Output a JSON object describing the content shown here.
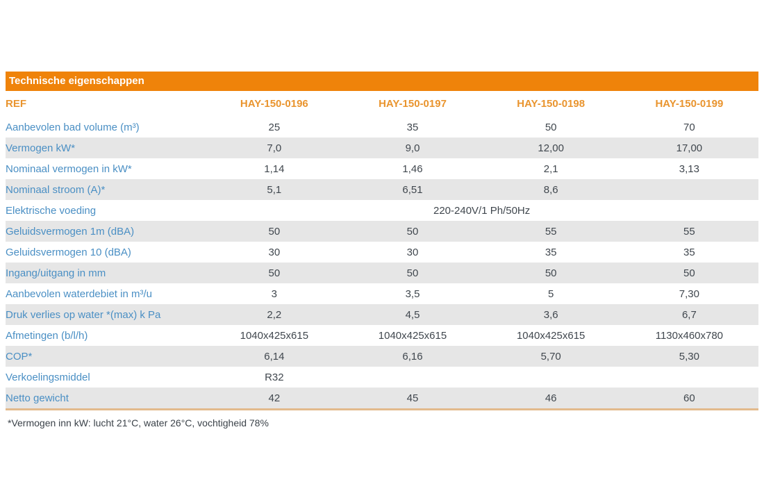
{
  "table": {
    "title": "Technische eigenschappen",
    "ref_label": "REF",
    "columns": [
      "HAY-150-0196",
      "HAY-150-0197",
      "HAY-150-0198",
      "HAY-150-0199"
    ],
    "rows": [
      {
        "label": "Aanbevolen bad volume (m³)",
        "values": [
          "25",
          "35",
          "50",
          "70"
        ]
      },
      {
        "label": "Vermogen kW*",
        "values": [
          "7,0",
          "9,0",
          "12,00",
          "17,00"
        ]
      },
      {
        "label": "Nominaal vermogen in kW*",
        "values": [
          "1,14",
          "1,46",
          "2,1",
          "3,13"
        ]
      },
      {
        "label": "Nominaal stroom (A)*",
        "values": [
          "5,1",
          "6,51",
          "8,6",
          ""
        ]
      },
      {
        "label": "Elektrische voeding",
        "span_value": "220-240V/1 Ph/50Hz"
      },
      {
        "label": "Geluidsvermogen 1m (dBA)",
        "values": [
          "50",
          "50",
          "55",
          "55"
        ]
      },
      {
        "label": "Geluidsvermogen 10 (dBA)",
        "values": [
          "30",
          "30",
          "35",
          "35"
        ]
      },
      {
        "label": "Ingang/uitgang in mm",
        "values": [
          "50",
          "50",
          "50",
          "50"
        ]
      },
      {
        "label": "Aanbevolen waterdebiet in m³/u",
        "values": [
          "3",
          "3,5",
          "5",
          "7,30"
        ]
      },
      {
        "label": "Druk verlies op water *(max) k Pa",
        "values": [
          "2,2",
          "4,5",
          "3,6",
          "6,7"
        ]
      },
      {
        "label": "Afmetingen (b/l/h)",
        "values": [
          "1040x425x615",
          "1040x425x615",
          "1040x425x615",
          "1130x460x780"
        ]
      },
      {
        "label": "COP*",
        "values": [
          "6,14",
          "6,16",
          "5,70",
          "5,30"
        ]
      },
      {
        "label": "Verkoelingsmiddel",
        "values": [
          "R32",
          "",
          "",
          ""
        ]
      },
      {
        "label": "Netto gewicht",
        "values": [
          "42",
          "45",
          "46",
          "60"
        ]
      }
    ],
    "footnote": "*Vermogen inn kW: lucht 21°C, water 26°C, vochtigheid 78%"
  },
  "colors": {
    "header_bar": "#EF830A",
    "header_bar_text": "#FFFFFF",
    "ref_header_text": "#E9942E",
    "row_label_text": "#4A8FC4",
    "value_text": "#40474E",
    "alt_row_bg": "#E6E6E6",
    "bottom_rule": "#E3BA8C"
  }
}
